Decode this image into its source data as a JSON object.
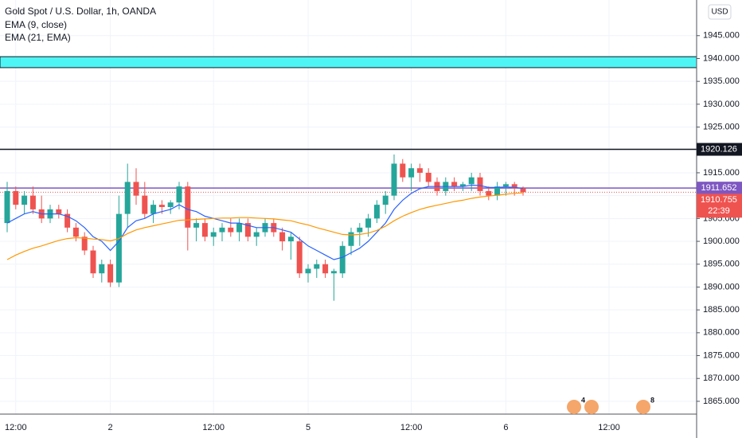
{
  "chart_data": {
    "type": "candlestick",
    "title": "Gold Spot / U.S. Dollar, 1h, OANDA",
    "currency": "USD",
    "categories": [
      null,
      "12:00",
      null,
      null,
      null,
      null,
      null,
      null,
      null,
      null,
      null,
      null,
      "2",
      null,
      null,
      null,
      null,
      null,
      null,
      null,
      null,
      null,
      null,
      null,
      "12:00",
      null,
      null,
      null,
      null,
      null,
      null,
      null,
      null,
      null,
      null,
      "5",
      null,
      null,
      null,
      null,
      null,
      null,
      null,
      null,
      null,
      null,
      null,
      "12:00",
      null,
      null,
      null,
      null,
      null,
      null,
      null,
      null,
      null,
      null,
      "6",
      null,
      null,
      null,
      null,
      null,
      null,
      null,
      null,
      null,
      null,
      null,
      "12:00"
    ],
    "open": [
      1904,
      1911,
      1908,
      1910,
      1907,
      1905,
      1907,
      1906,
      1903,
      1901,
      1898,
      1893,
      1895,
      1891,
      1906,
      1913,
      1910,
      1906,
      1908,
      1907.5,
      1908.5,
      1912,
      1903,
      1904,
      1901,
      1902,
      1903,
      1902,
      1904,
      1901,
      1902,
      1904,
      1902,
      1900,
      1900,
      1893,
      1894,
      1895,
      1893,
      1893,
      1899,
      1902,
      1903,
      1905,
      1908,
      1910,
      1917,
      1914,
      1916,
      1915,
      1913,
      1911,
      1913,
      1912,
      1912.5,
      1914,
      1911,
      1910,
      1912,
      1912.5,
      1911.6,
      null,
      null,
      null,
      null,
      null,
      null,
      null,
      null,
      null,
      null
    ],
    "high": [
      1913,
      1912,
      1911,
      1912,
      1910,
      1908,
      1908,
      1907,
      1904,
      1902,
      1899,
      1896,
      1896,
      1910,
      1917,
      1916,
      1913,
      1909,
      1909,
      1909,
      1913,
      1913,
      1905,
      1905,
      1903,
      1904,
      1905,
      1905,
      1905,
      1903,
      1905,
      1905,
      1903,
      1902,
      1901,
      1895,
      1896,
      1896,
      1894,
      1900,
      1903,
      1904,
      1906,
      1909,
      1911,
      1919,
      1918,
      1917,
      1917,
      1916,
      1914,
      1914,
      1914,
      1913,
      1915,
      1915,
      1912,
      1913,
      1913,
      1913,
      1912,
      null,
      null,
      null,
      null,
      null,
      null,
      null,
      null,
      null,
      null
    ],
    "low": [
      1902,
      1907,
      1906,
      1906,
      1904,
      1904,
      1905,
      1902,
      1900,
      1897,
      1892,
      1891,
      1890,
      1890,
      1903,
      1908,
      1905,
      1904,
      1906,
      1906,
      1907,
      1898,
      1900,
      1900,
      1899,
      1900,
      1901,
      1900,
      1900,
      1899,
      1901,
      1901,
      1898,
      1896,
      1892,
      1891,
      1892,
      1892,
      1887,
      1892,
      1897,
      1899,
      1901,
      1904,
      1906,
      1909,
      1913,
      1911,
      1913,
      1912,
      1910,
      1910,
      1911,
      1911,
      1911,
      1910,
      1909,
      1909,
      1910,
      1910,
      1910,
      null,
      null,
      null,
      null,
      null,
      null,
      null,
      null,
      null,
      null
    ],
    "close": [
      1911,
      1908,
      1910,
      1907,
      1905,
      1907,
      1906,
      1903,
      1901,
      1898,
      1893,
      1895,
      1891,
      1906,
      1913,
      1910,
      1906,
      1908,
      1907.5,
      1908.5,
      1912,
      1903,
      1904,
      1901,
      1902,
      1903,
      1902,
      1904,
      1901,
      1902,
      1904,
      1902,
      1900,
      1901,
      1893,
      1894,
      1895,
      1893,
      1893.5,
      1899,
      1902,
      1903,
      1905,
      1908,
      1910,
      1917,
      1914,
      1916,
      1915,
      1913,
      1911,
      1913,
      1912,
      1912.5,
      1914,
      1911,
      1910,
      1912,
      1912.5,
      1911.6,
      1910.755,
      null,
      null,
      null,
      null,
      null,
      null,
      null,
      null,
      null,
      null
    ],
    "up_color": "#26a69a",
    "down_color": "#ef5350",
    "series": [
      {
        "name": "EMA (9, close)",
        "color": "#2962ff",
        "values": [
          1904,
          1905,
          1906,
          1906.5,
          1906,
          1906,
          1906,
          1905.5,
          1904.5,
          1903,
          1901,
          1900,
          1898,
          1900,
          1903,
          1904.5,
          1905,
          1906,
          1906.5,
          1907,
          1908,
          1907,
          1906.5,
          1905.5,
          1905,
          1904.5,
          1904,
          1904,
          1903.5,
          1903,
          1903,
          1903,
          1902.5,
          1902,
          1900.5,
          1899,
          1898,
          1897,
          1896,
          1896.5,
          1897.5,
          1898.5,
          1900,
          1902,
          1904,
          1907,
          1909,
          1910.5,
          1911.5,
          1912,
          1912,
          1912,
          1912,
          1912,
          1912.3,
          1912.2,
          1911.8,
          1911.8,
          1911.9,
          1911.8,
          1911.6,
          null,
          null,
          null,
          null,
          null,
          null,
          null,
          null,
          null,
          null
        ]
      },
      {
        "name": "EMA (21, EMA)",
        "color": "#ff9800",
        "values": [
          1896,
          1897,
          1897.8,
          1898.5,
          1899,
          1899.6,
          1900.2,
          1900.6,
          1900.8,
          1900.7,
          1900.5,
          1900.4,
          1900.1,
          1900.6,
          1901.7,
          1902.5,
          1903,
          1903.4,
          1903.8,
          1904.2,
          1904.6,
          1904.7,
          1904.8,
          1904.9,
          1905,
          1905.1,
          1905.1,
          1905.2,
          1905.2,
          1905.1,
          1905,
          1904.9,
          1904.7,
          1904.5,
          1904,
          1903.6,
          1903,
          1902.5,
          1902,
          1901.5,
          1901.4,
          1901.5,
          1901.8,
          1902.4,
          1903.3,
          1904.5,
          1905.5,
          1906.3,
          1907,
          1907.5,
          1907.9,
          1908.3,
          1908.7,
          1909,
          1909.4,
          1909.7,
          1909.9,
          1910.1,
          1910.3,
          1910.5,
          1910.6,
          null,
          null,
          null,
          null,
          null,
          null,
          null,
          null,
          null,
          null
        ]
      }
    ],
    "ylim": [
      1862.2,
      1952.8
    ],
    "yticks": [
      {
        "value": 1865,
        "label": "1865.000"
      },
      {
        "value": 1870,
        "label": "1870.000"
      },
      {
        "value": 1875,
        "label": "1875.000"
      },
      {
        "value": 1880,
        "label": "1880.000"
      },
      {
        "value": 1885,
        "label": "1885.000"
      },
      {
        "value": 1890,
        "label": "1890.000"
      },
      {
        "value": 1895,
        "label": "1895.000"
      },
      {
        "value": 1900,
        "label": "1900.000"
      },
      {
        "value": 1905,
        "label": "1905.000"
      },
      {
        "value": 1910,
        "label": "1910.000"
      },
      {
        "value": 1915,
        "label": "1915.000"
      },
      {
        "value": 1920,
        "label": "1920.000"
      },
      {
        "value": 1925,
        "label": "1925.000"
      },
      {
        "value": 1930,
        "label": "1930.000"
      },
      {
        "value": 1935,
        "label": "1935.000"
      },
      {
        "value": 1940,
        "label": "1940.000"
      },
      {
        "value": 1945,
        "label": "1945.000"
      }
    ],
    "grid": true,
    "zone": {
      "from": 1938.0,
      "to": 1940.4,
      "color": "#4ef5f5"
    },
    "hlines": [
      {
        "value": 1920.126,
        "color": "#131722"
      },
      {
        "value": 1911.652,
        "color": "#7e57c2"
      }
    ],
    "last_price": 1910.755,
    "countdown": "22:39",
    "event_counts": [
      4,
      8
    ]
  }
}
